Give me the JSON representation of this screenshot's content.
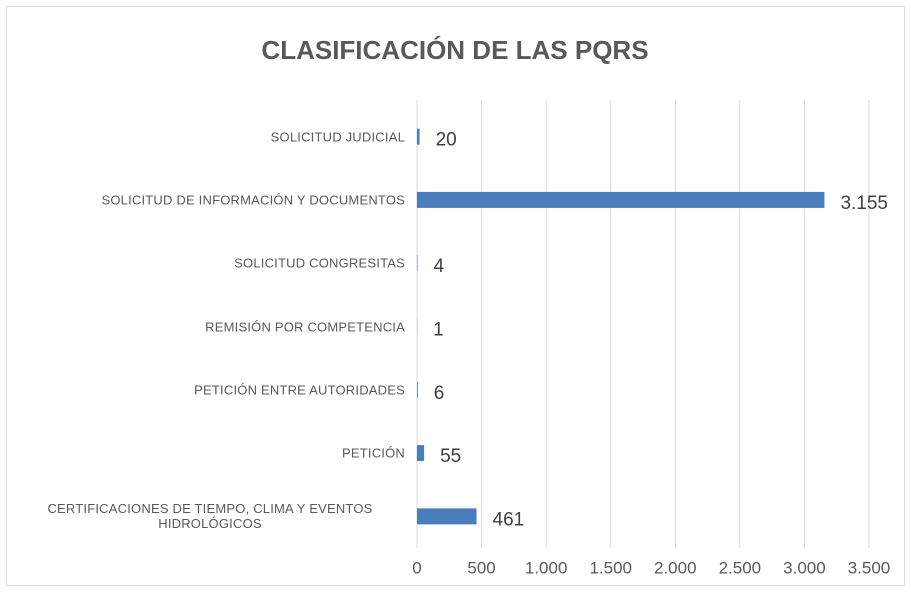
{
  "chart_data": {
    "type": "hbar",
    "title": "CLASIFICACIÓN DE LAS PQRS",
    "categories": [
      "SOLICITUD JUDICIAL",
      "SOLICITUD DE INFORMACIÓN Y DOCUMENTOS",
      "SOLICITUD CONGRESITAS",
      "REMISIÓN POR COMPETENCIA",
      "PETICIÓN ENTRE AUTORIDADES",
      "PETICIÓN",
      "CERTIFICACIONES DE TIEMPO, CLIMA Y EVENTOS HIDROLÓGICOS"
    ],
    "values": [
      20,
      3155,
      4,
      1,
      6,
      55,
      461
    ],
    "value_labels": [
      "20",
      "3.155",
      "4",
      "1",
      "6",
      "55",
      "461"
    ],
    "color": "#4a7ebb",
    "xlim": [
      0,
      3500
    ],
    "xticks": [
      0,
      500,
      {
        "value": 1000,
        "label": "1.000"
      },
      {
        "value": 1500,
        "label": "1.500"
      },
      {
        "value": 2000,
        "label": "2.000"
      },
      {
        "value": 2500,
        "label": "2.500"
      },
      {
        "value": 3000,
        "label": "3.000"
      },
      {
        "value": 3500,
        "label": "3.500"
      }
    ],
    "grid": true
  }
}
